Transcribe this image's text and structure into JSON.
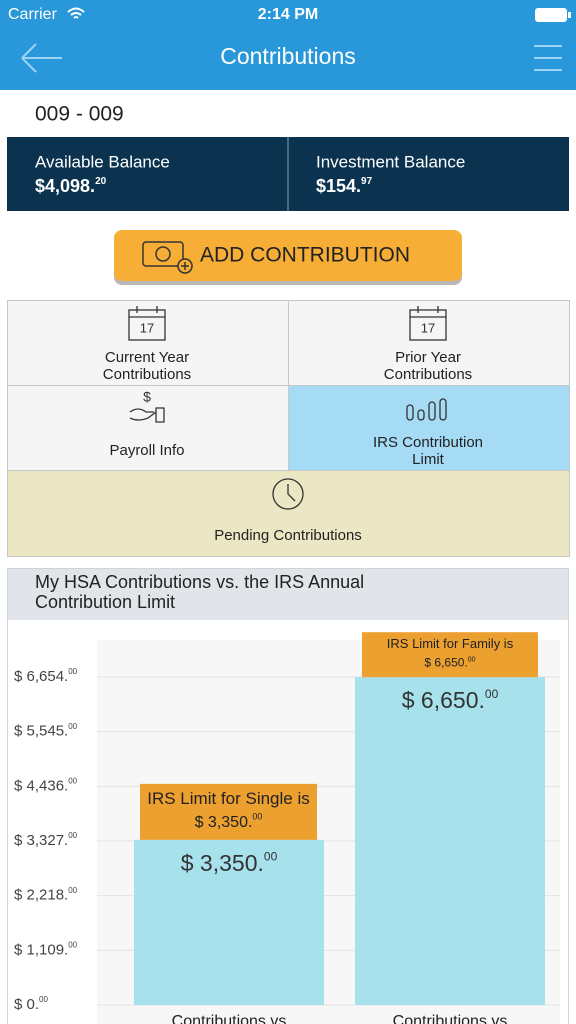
{
  "status_bar": {
    "carrier": "Carrier",
    "time": "2:14 PM"
  },
  "nav": {
    "title": "Contributions"
  },
  "account": {
    "number": "009 - 009"
  },
  "balances": [
    {
      "label": "Available Balance",
      "amount": "$4,098.",
      "cents": "20"
    },
    {
      "label": "Investment Balance",
      "amount": "$154.",
      "cents": "97"
    }
  ],
  "button": {
    "label": "ADD CONTRIBUTION"
  },
  "tiles": [
    {
      "icon_text": "17",
      "label_lines": [
        "Current Year",
        "Contributions"
      ]
    },
    {
      "icon_text": "17",
      "label_lines": [
        "Prior Year",
        "Contributions"
      ]
    },
    {
      "icon_text": "$",
      "label_lines": [
        "Payroll Info"
      ]
    },
    {
      "label_lines": [
        "IRS Contribution",
        "Limit"
      ]
    },
    {
      "label_lines": [
        "Pending Contributions"
      ]
    }
  ],
  "chart_data": {
    "type": "bar",
    "title_lines": [
      "My HSA Contributions vs. the IRS Annual",
      "Contribution Limit"
    ],
    "categories": [
      "Contributions vs",
      "Contributions vs"
    ],
    "values": [
      3350,
      6650
    ],
    "value_labels": [
      "$ 3,350.00",
      "$ 6,650.00"
    ],
    "color": "#a7e1ec",
    "annotations": [
      {
        "text": "IRS Limit for Single is",
        "amount": "$ 3,350.00"
      },
      {
        "text": "IRS Limit for Family is",
        "amount": "$ 6,650.00"
      }
    ],
    "annotation_color": "#eba030",
    "ylim": [
      0,
      6654
    ],
    "yticks": [
      {
        "value": 0,
        "label": "$ 0.00"
      },
      {
        "value": 1109,
        "label": "$ 1,109.00"
      },
      {
        "value": 2218,
        "label": "$ 2,218.00"
      },
      {
        "value": 3327,
        "label": "$ 3,327.00"
      },
      {
        "value": 4436,
        "label": "$ 4,436.00"
      },
      {
        "value": 5545,
        "label": "$ 5,545.00"
      },
      {
        "value": 6654,
        "label": "$ 6,654.00"
      }
    ],
    "grid": true
  }
}
